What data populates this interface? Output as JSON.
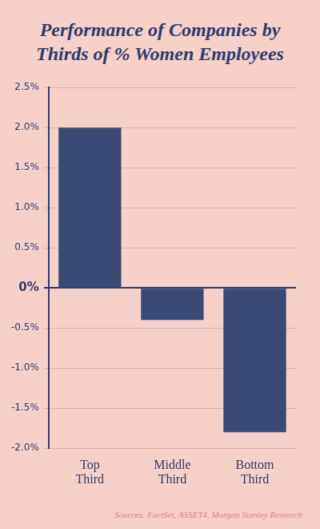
{
  "chart_data": {
    "type": "bar",
    "title": "Performance of Companies by Thirds of % Women Employees",
    "source": "Sources: FactSet, ASSET4, Morgan Stanley Research",
    "categories": [
      "Top Third",
      "Middle Third",
      "Bottom Third"
    ],
    "values": [
      2.0,
      -0.4,
      -1.8
    ],
    "color": "#3a4a76",
    "ylim": [
      -2.0,
      2.5
    ],
    "yticks": [
      {
        "value": -2.0,
        "label": "-2.0%"
      },
      {
        "value": -1.5,
        "label": "-1.5%"
      },
      {
        "value": -1.0,
        "label": "-1.0%"
      },
      {
        "value": -0.5,
        "label": "-0.5%"
      },
      {
        "value": 0,
        "label": "0%"
      },
      {
        "value": 0.5,
        "label": "0.5%"
      },
      {
        "value": 1.0,
        "label": "1.0%"
      },
      {
        "value": 1.5,
        "label": "1.5%"
      },
      {
        "value": 2.0,
        "label": "2.0%"
      },
      {
        "value": 2.5,
        "label": "2.5%"
      }
    ],
    "grid": true
  }
}
